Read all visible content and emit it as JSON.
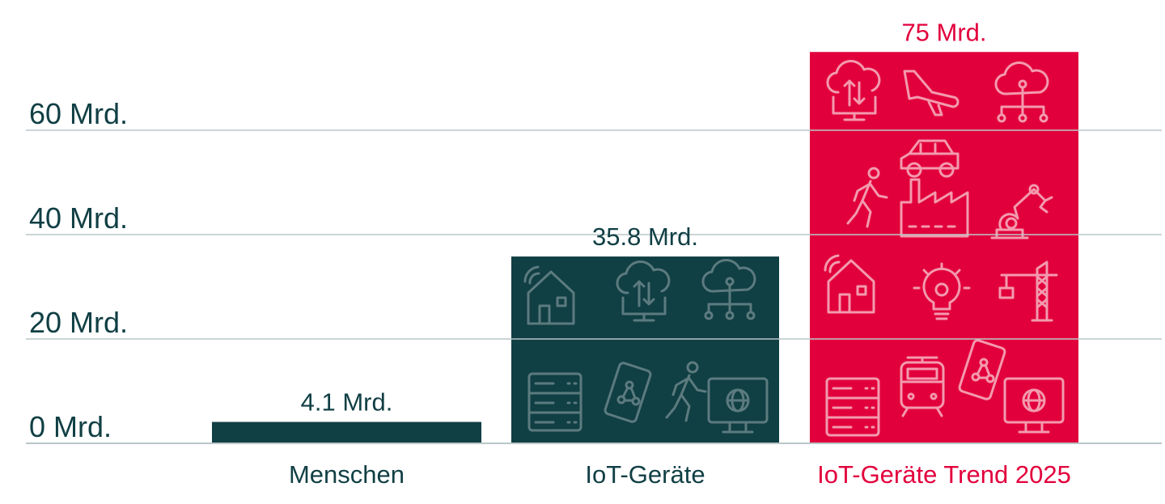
{
  "chart_data": {
    "type": "bar",
    "categories": [
      "Menschen",
      "IoT-Geräte",
      "IoT-Geräte Trend 2025"
    ],
    "values": [
      4.1,
      35.8,
      75
    ],
    "value_labels": [
      "4.1 Mrd.",
      "35.8 Mrd.",
      "75 Mrd."
    ],
    "yticks": [
      0,
      20,
      40,
      60
    ],
    "ytick_labels": [
      "0 Mrd.",
      "20 Mrd.",
      "40 Mrd.",
      "60 Mrd."
    ],
    "ylim": [
      0,
      75
    ],
    "grid": true,
    "legend": "none",
    "title": "",
    "xlabel": "",
    "ylabel": "",
    "bar_colors": [
      "#103f44",
      "#103f44",
      "#e2003c"
    ],
    "label_colors": [
      "#103f44",
      "#103f44",
      "#e2003c"
    ],
    "icon_colors": [
      "none",
      "#5c7b7f",
      "#f39aae"
    ],
    "bar_icons": [
      [],
      [
        "smart-home-icon",
        "cloud-upload-icon",
        "cloud-network-icon",
        "server-rack-icon",
        "phone-network-icon",
        "walking-person-icon",
        "monitor-globe-icon"
      ],
      [
        "cloud-upload-icon",
        "airplane-icon",
        "cloud-network-icon",
        "car-icon",
        "walking-person-icon",
        "factory-icon",
        "robot-arm-icon",
        "smart-home-icon",
        "lightbulb-gear-icon",
        "crane-icon",
        "server-rack-icon",
        "tram-icon",
        "phone-network-icon",
        "monitor-globe-icon"
      ]
    ]
  }
}
